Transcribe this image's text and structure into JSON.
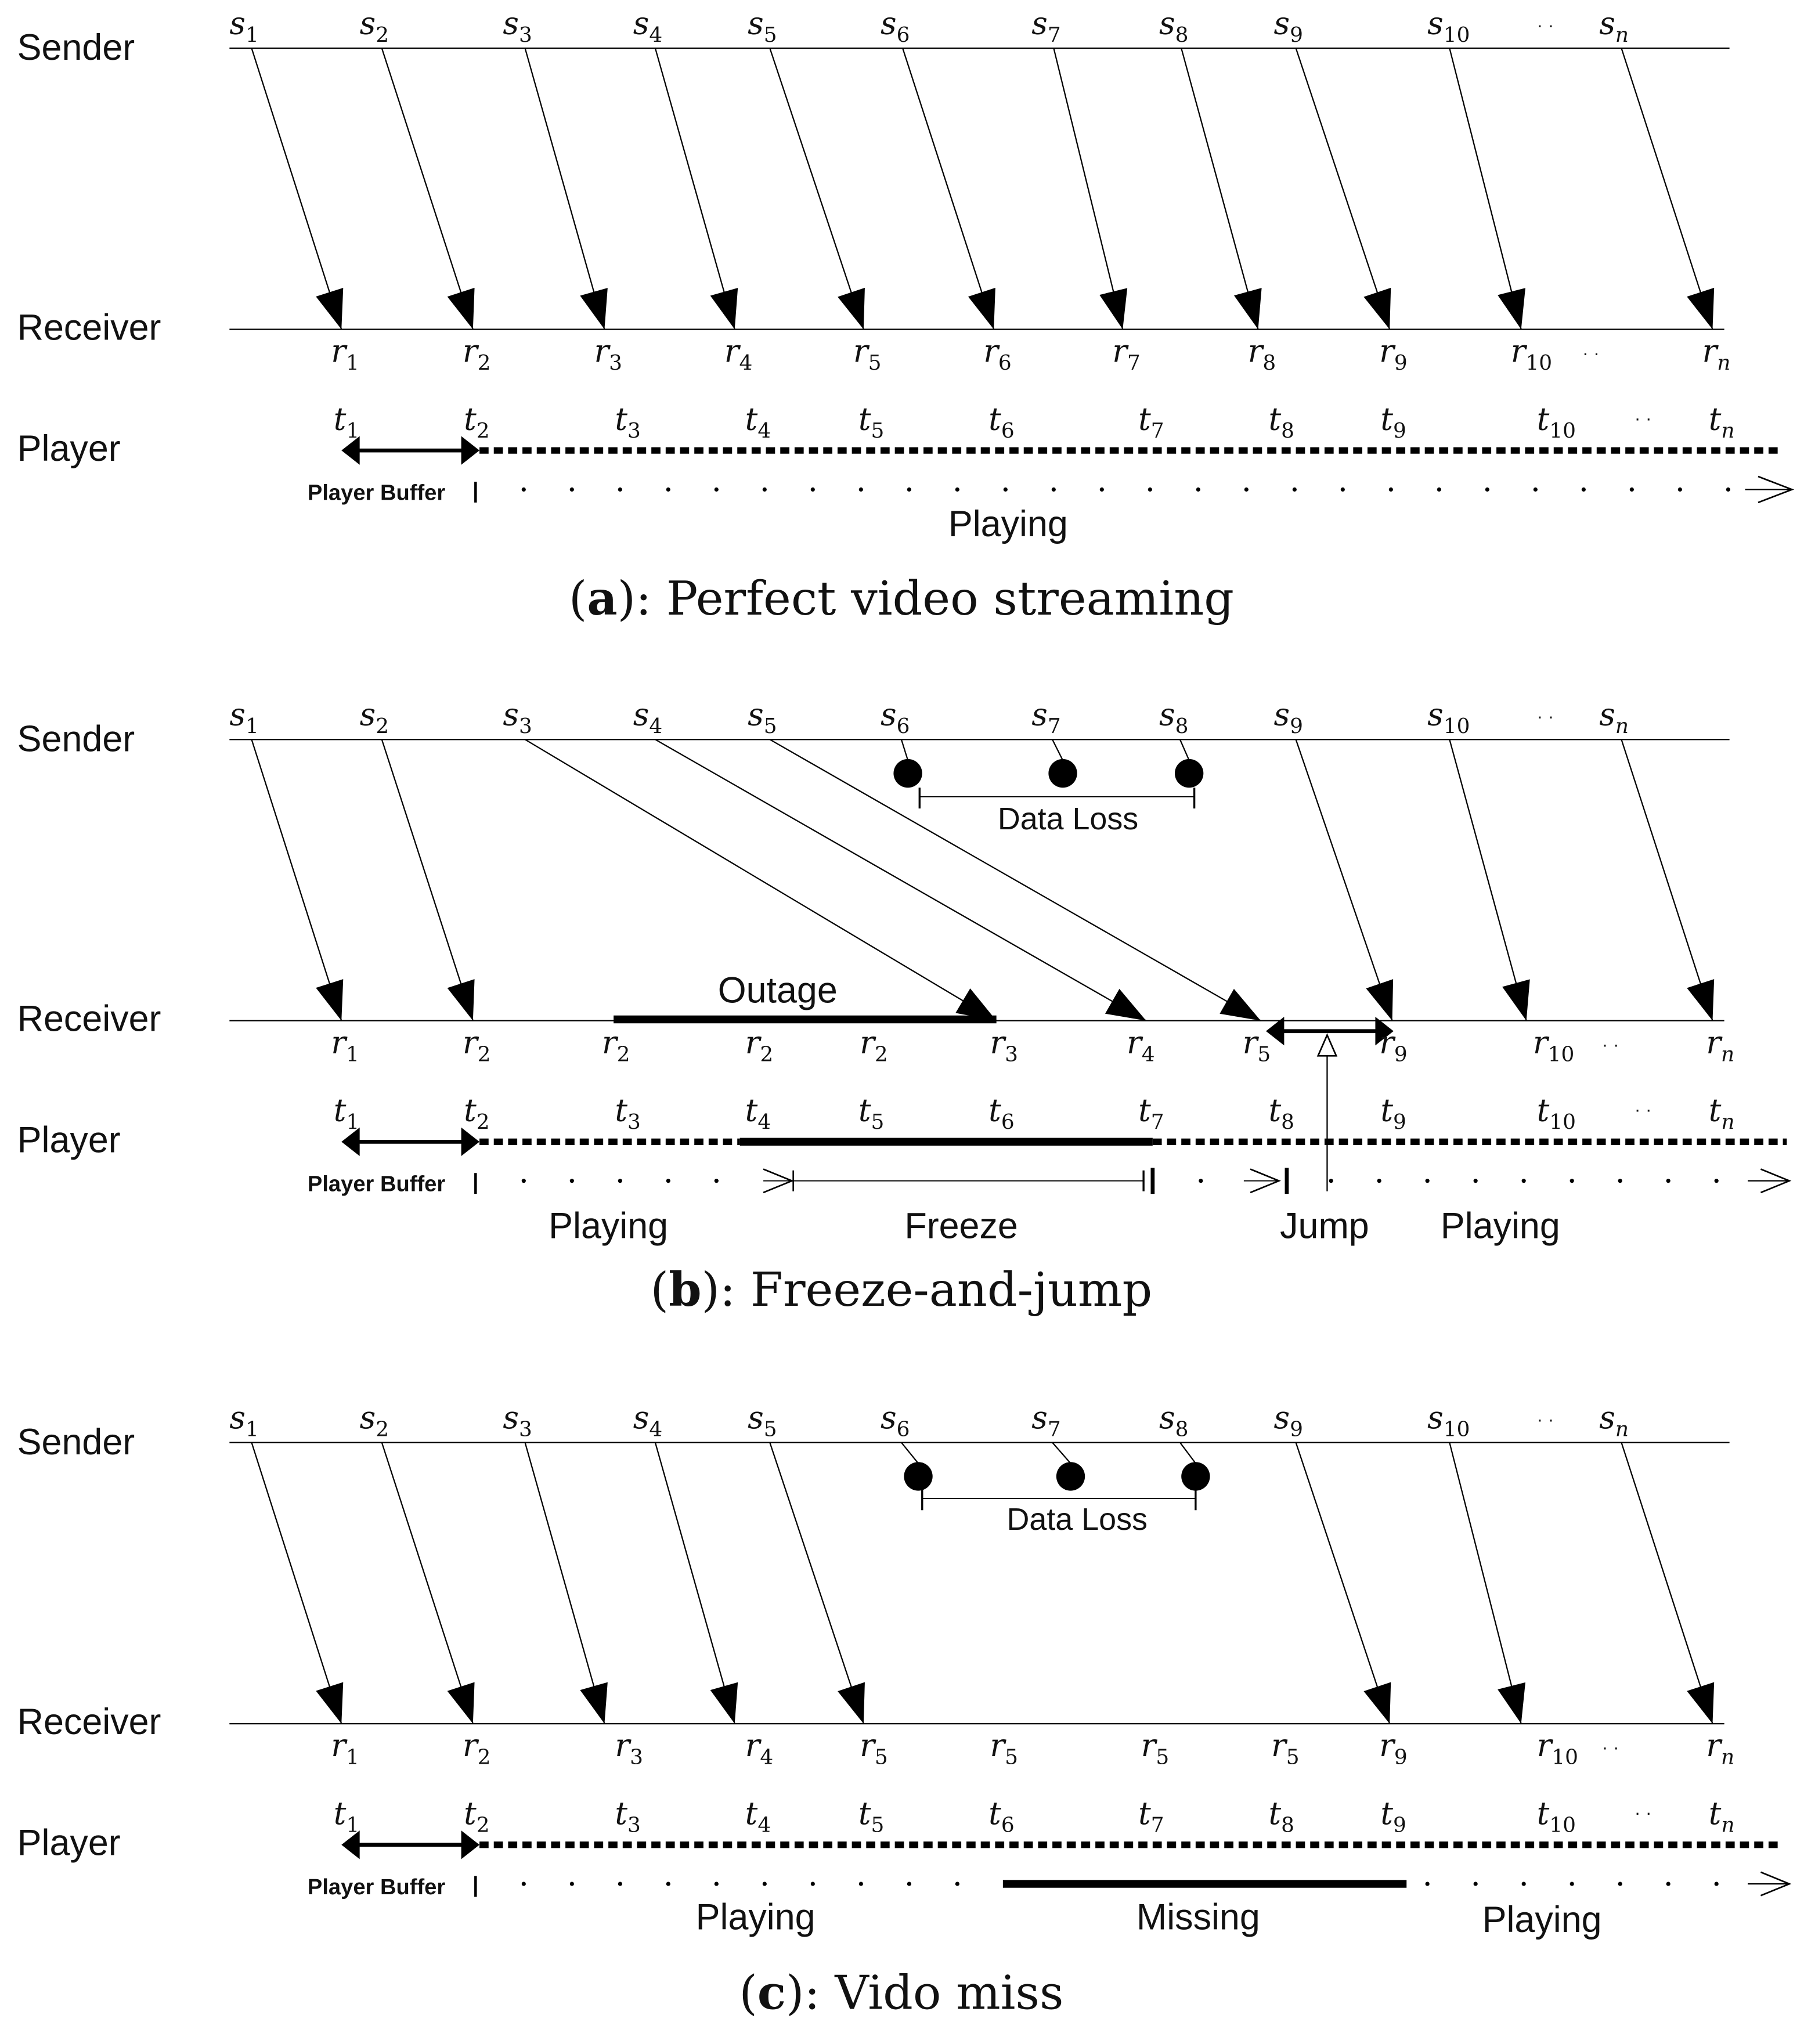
{
  "row_labels": {
    "sender": "Sender",
    "receiver": "Receiver",
    "player": "Player"
  },
  "buffer_label": "Player Buffer",
  "ellipsis": "· ·",
  "panels": [
    {
      "id": "a",
      "caption_letter": "a",
      "caption_text": "): Perfect video streaming",
      "sender_labels": [
        {
          "base": "s",
          "sub": "1"
        },
        {
          "base": "s",
          "sub": "2"
        },
        {
          "base": "s",
          "sub": "3"
        },
        {
          "base": "s",
          "sub": "4"
        },
        {
          "base": "s",
          "sub": "5"
        },
        {
          "base": "s",
          "sub": "6"
        },
        {
          "base": "s",
          "sub": "7"
        },
        {
          "base": "s",
          "sub": "8"
        },
        {
          "base": "s",
          "sub": "9"
        },
        {
          "base": "s",
          "sub": "10"
        },
        {
          "base": "s",
          "sub": "n"
        }
      ],
      "receiver_labels": [
        {
          "base": "r",
          "sub": "1"
        },
        {
          "base": "r",
          "sub": "2"
        },
        {
          "base": "r",
          "sub": "3"
        },
        {
          "base": "r",
          "sub": "4"
        },
        {
          "base": "r",
          "sub": "5"
        },
        {
          "base": "r",
          "sub": "6"
        },
        {
          "base": "r",
          "sub": "7"
        },
        {
          "base": "r",
          "sub": "8"
        },
        {
          "base": "r",
          "sub": "9"
        },
        {
          "base": "r",
          "sub": "10"
        },
        {
          "base": "r",
          "sub": "n"
        }
      ],
      "player_labels": [
        {
          "base": "t",
          "sub": "1"
        },
        {
          "base": "t",
          "sub": "2"
        },
        {
          "base": "t",
          "sub": "3"
        },
        {
          "base": "t",
          "sub": "4"
        },
        {
          "base": "t",
          "sub": "5"
        },
        {
          "base": "t",
          "sub": "6"
        },
        {
          "base": "t",
          "sub": "7"
        },
        {
          "base": "t",
          "sub": "8"
        },
        {
          "base": "t",
          "sub": "9"
        },
        {
          "base": "t",
          "sub": "10"
        },
        {
          "base": "t",
          "sub": "n"
        }
      ],
      "state_labels": [
        "Playing"
      ]
    },
    {
      "id": "b",
      "caption_letter": "b",
      "caption_text": "): Freeze-and-jump",
      "sender_labels": [
        {
          "base": "s",
          "sub": "1"
        },
        {
          "base": "s",
          "sub": "2"
        },
        {
          "base": "s",
          "sub": "3"
        },
        {
          "base": "s",
          "sub": "4"
        },
        {
          "base": "s",
          "sub": "5"
        },
        {
          "base": "s",
          "sub": "6"
        },
        {
          "base": "s",
          "sub": "7"
        },
        {
          "base": "s",
          "sub": "8"
        },
        {
          "base": "s",
          "sub": "9"
        },
        {
          "base": "s",
          "sub": "10"
        },
        {
          "base": "s",
          "sub": "n"
        }
      ],
      "receiver_labels": [
        {
          "base": "r",
          "sub": "1"
        },
        {
          "base": "r",
          "sub": "2"
        },
        {
          "base": "r",
          "sub": "2"
        },
        {
          "base": "r",
          "sub": "2"
        },
        {
          "base": "r",
          "sub": "2"
        },
        {
          "base": "r",
          "sub": "3"
        },
        {
          "base": "r",
          "sub": "4"
        },
        {
          "base": "r",
          "sub": "5"
        },
        {
          "base": "r",
          "sub": "9"
        },
        {
          "base": "r",
          "sub": "10"
        },
        {
          "base": "r",
          "sub": "n"
        }
      ],
      "player_labels": [
        {
          "base": "t",
          "sub": "1"
        },
        {
          "base": "t",
          "sub": "2"
        },
        {
          "base": "t",
          "sub": "3"
        },
        {
          "base": "t",
          "sub": "4"
        },
        {
          "base": "t",
          "sub": "5"
        },
        {
          "base": "t",
          "sub": "6"
        },
        {
          "base": "t",
          "sub": "7"
        },
        {
          "base": "t",
          "sub": "8"
        },
        {
          "base": "t",
          "sub": "9"
        },
        {
          "base": "t",
          "sub": "10"
        },
        {
          "base": "t",
          "sub": "n"
        }
      ],
      "data_loss": "Data Loss",
      "outage": "Outage",
      "state_labels": [
        "Playing",
        "Freeze",
        "Jump",
        "Playing"
      ]
    },
    {
      "id": "c",
      "caption_letter": "c",
      "caption_text": "): Vido miss",
      "sender_labels": [
        {
          "base": "s",
          "sub": "1"
        },
        {
          "base": "s",
          "sub": "2"
        },
        {
          "base": "s",
          "sub": "3"
        },
        {
          "base": "s",
          "sub": "4"
        },
        {
          "base": "s",
          "sub": "5"
        },
        {
          "base": "s",
          "sub": "6"
        },
        {
          "base": "s",
          "sub": "7"
        },
        {
          "base": "s",
          "sub": "8"
        },
        {
          "base": "s",
          "sub": "9"
        },
        {
          "base": "s",
          "sub": "10"
        },
        {
          "base": "s",
          "sub": "n"
        }
      ],
      "receiver_labels": [
        {
          "base": "r",
          "sub": "1"
        },
        {
          "base": "r",
          "sub": "2"
        },
        {
          "base": "r",
          "sub": "3"
        },
        {
          "base": "r",
          "sub": "4"
        },
        {
          "base": "r",
          "sub": "5"
        },
        {
          "base": "r",
          "sub": "5"
        },
        {
          "base": "r",
          "sub": "5"
        },
        {
          "base": "r",
          "sub": "5"
        },
        {
          "base": "r",
          "sub": "9"
        },
        {
          "base": "r",
          "sub": "10"
        },
        {
          "base": "r",
          "sub": "n"
        }
      ],
      "player_labels": [
        {
          "base": "t",
          "sub": "1"
        },
        {
          "base": "t",
          "sub": "2"
        },
        {
          "base": "t",
          "sub": "3"
        },
        {
          "base": "t",
          "sub": "4"
        },
        {
          "base": "t",
          "sub": "5"
        },
        {
          "base": "t",
          "sub": "6"
        },
        {
          "base": "t",
          "sub": "7"
        },
        {
          "base": "t",
          "sub": "8"
        },
        {
          "base": "t",
          "sub": "9"
        },
        {
          "base": "t",
          "sub": "10"
        },
        {
          "base": "t",
          "sub": "n"
        }
      ],
      "data_loss": "Data Loss",
      "state_labels": [
        "Playing",
        "Missing",
        "Playing"
      ]
    }
  ]
}
